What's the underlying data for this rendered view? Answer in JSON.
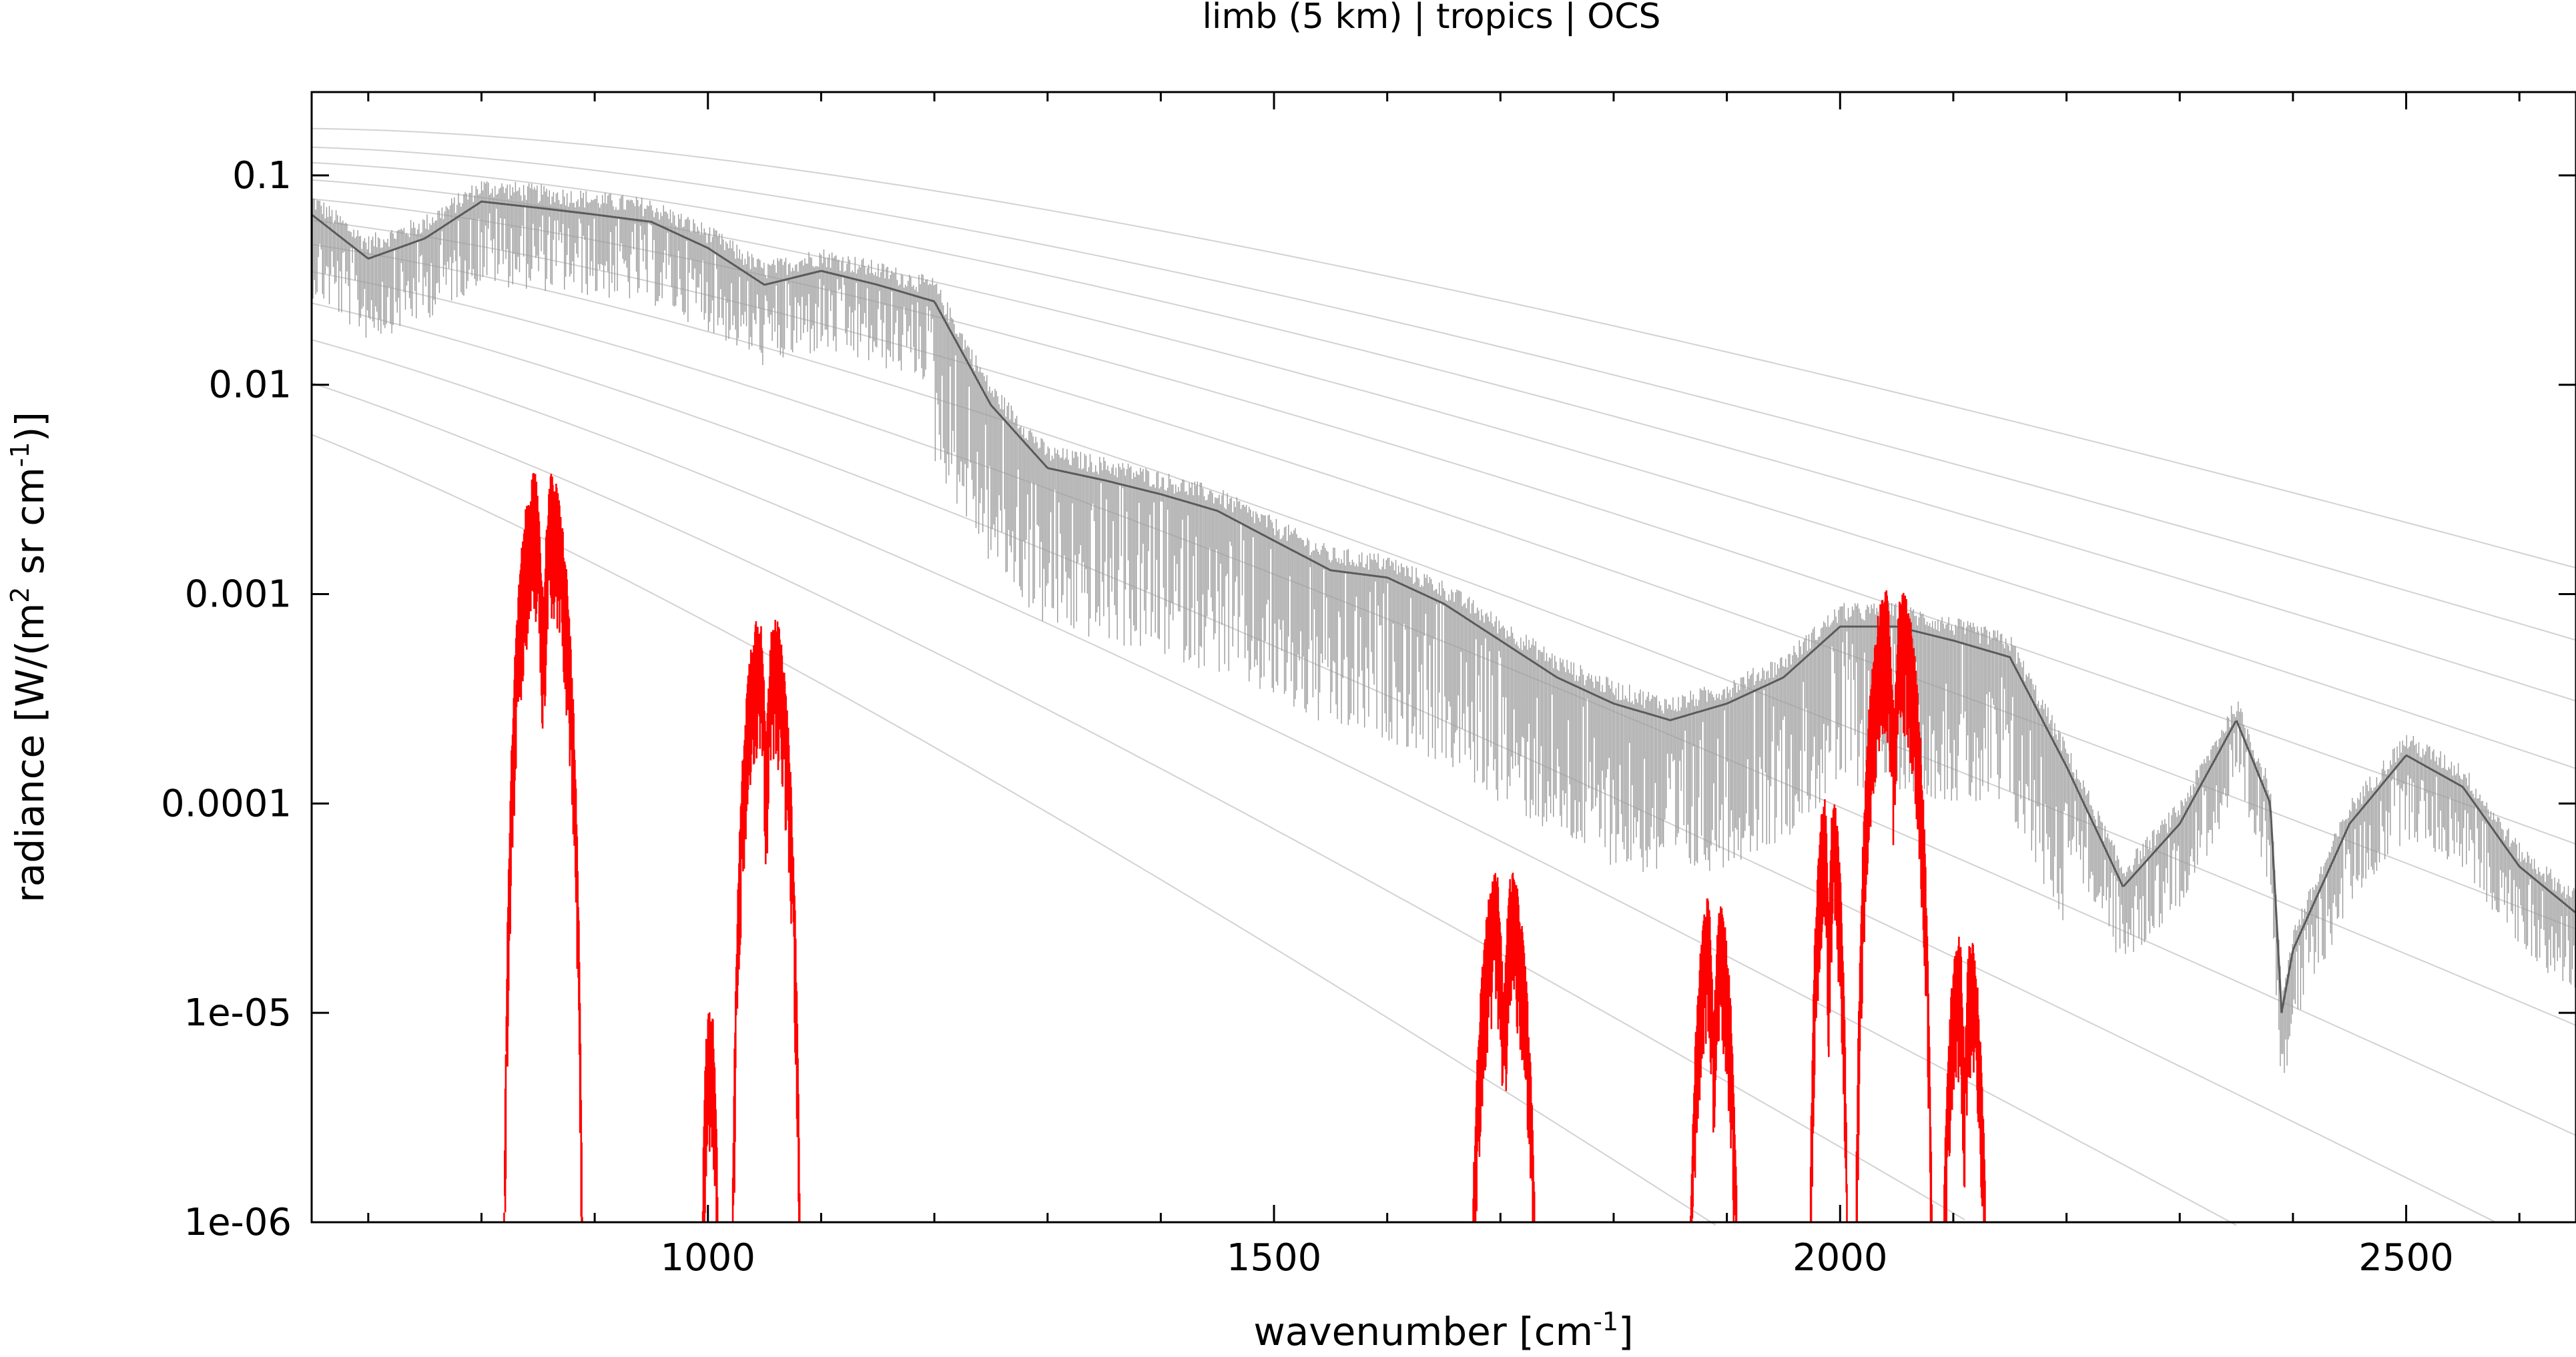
{
  "chart_data": {
    "type": "line",
    "title": "limb (5 km) | tropics | OCS",
    "xlabel": "wavenumber [cm-1]",
    "ylabel": "radiance [W/(m2 sr cm-1)]",
    "xlabel_parts": {
      "base": "wavenumber [cm",
      "sup": "-1",
      "tail": "]"
    },
    "ylabel_parts": {
      "a": "radiance [W/(m",
      "sup1": "2",
      "b": " sr cm",
      "sup2": "-1",
      "c": ")]"
    },
    "x_scale": "linear",
    "y_scale": "log",
    "xlim": [
      650,
      2650
    ],
    "ylim": [
      1e-06,
      0.25
    ],
    "x_ticks": [
      {
        "value": 1000,
        "label": "1000"
      },
      {
        "value": 1500,
        "label": "1500"
      },
      {
        "value": 2000,
        "label": "2000"
      },
      {
        "value": 2500,
        "label": "2500"
      }
    ],
    "x_minor_step": 100,
    "y_ticks": [
      {
        "value": 0.1,
        "label": "0.1"
      },
      {
        "value": 0.01,
        "label": "0.01"
      },
      {
        "value": 0.001,
        "label": "0.001"
      },
      {
        "value": 0.0001,
        "label": "0.0001"
      },
      {
        "value": 1e-05,
        "label": "1e-05"
      },
      {
        "value": 1e-06,
        "label": "1e-06"
      }
    ],
    "grid": false,
    "legend": "none",
    "series": [
      {
        "role": "total radiance (dark)",
        "color": "#5a5a5a",
        "x": [
          650,
          700,
          750,
          800,
          850,
          900,
          950,
          1000,
          1050,
          1100,
          1150,
          1200,
          1250,
          1300,
          1350,
          1400,
          1450,
          1500,
          1550,
          1600,
          1650,
          1700,
          1750,
          1800,
          1850,
          1900,
          1950,
          2000,
          2050,
          2100,
          2150,
          2200,
          2250,
          2300,
          2350,
          2380,
          2390,
          2400,
          2450,
          2500,
          2550,
          2600,
          2650
        ],
        "y": [
          0.065,
          0.04,
          0.05,
          0.075,
          0.07,
          0.065,
          0.06,
          0.045,
          0.03,
          0.035,
          0.03,
          0.025,
          0.008,
          0.004,
          0.0035,
          0.003,
          0.0025,
          0.0018,
          0.0013,
          0.0012,
          0.0009,
          0.0006,
          0.0004,
          0.0003,
          0.00025,
          0.0003,
          0.0004,
          0.0007,
          0.0007,
          0.0006,
          0.0005,
          0.00015,
          4e-05,
          8e-05,
          0.00025,
          0.0001,
          1e-05,
          2e-05,
          8e-05,
          0.00017,
          0.00012,
          5e-05,
          3e-05
        ]
      },
      {
        "role": "OCS contribution",
        "color": "#ff0000",
        "bands": [
          {
            "lo": 817,
            "hi": 892,
            "peak": 0.0032
          },
          {
            "lo": 992,
            "hi": 1012,
            "peak": 8e-06
          },
          {
            "lo": 1018,
            "hi": 1085,
            "peak": 0.0007
          },
          {
            "lo": 1668,
            "hi": 1738,
            "peak": 4e-05
          },
          {
            "lo": 1862,
            "hi": 1915,
            "peak": 3e-05
          },
          {
            "lo": 1970,
            "hi": 2010,
            "peak": 9e-05
          },
          {
            "lo": 2010,
            "hi": 2085,
            "peak": 0.0009
          },
          {
            "lo": 2085,
            "hi": 2135,
            "peak": 2e-05
          }
        ]
      }
    ],
    "reference_curves": {
      "color": "#b4b4b4",
      "description": "faint Planck radiance curves in the background"
    }
  }
}
